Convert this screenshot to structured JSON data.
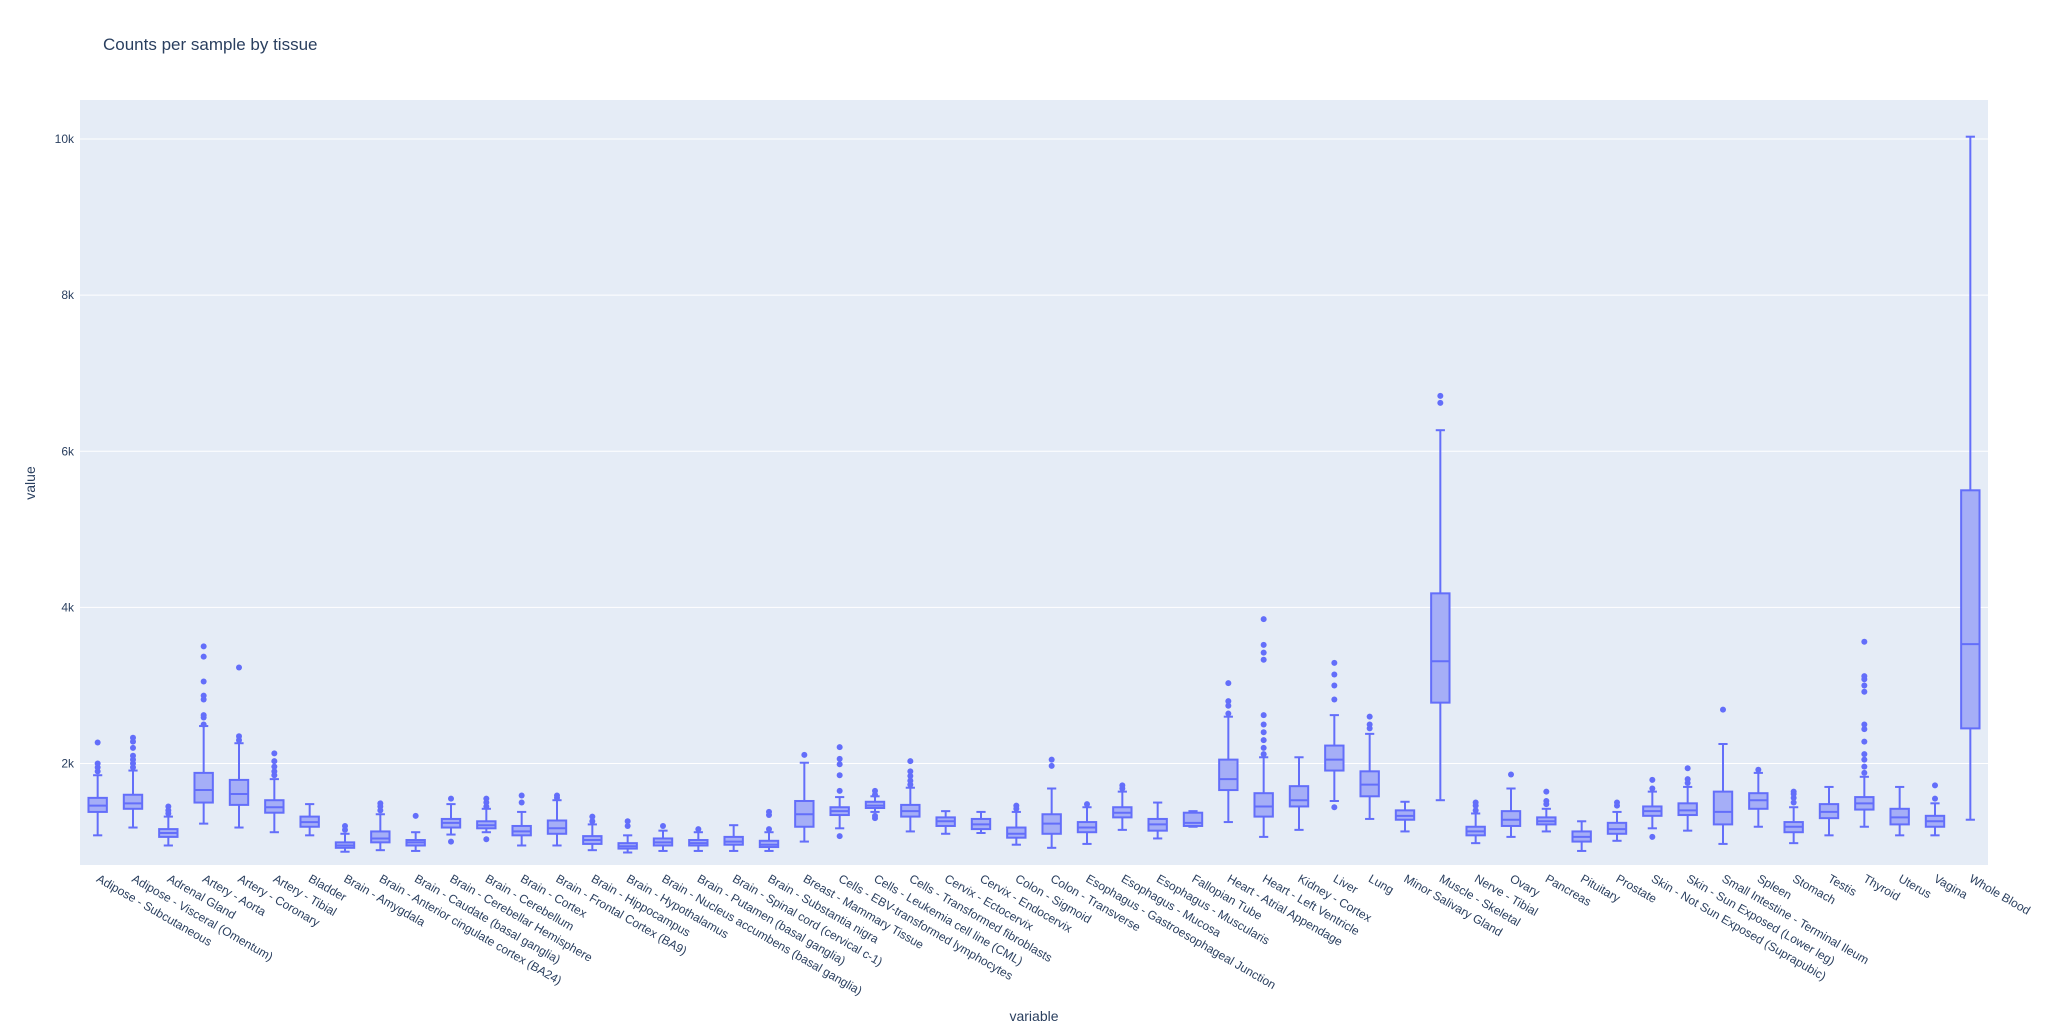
{
  "chart_data": {
    "type": "box",
    "title": "Counts per sample by tissue",
    "xlabel": "variable",
    "ylabel": "value",
    "ylim": [
      700,
      10500
    ],
    "yticks": [
      2000,
      4000,
      6000,
      8000,
      10000
    ],
    "ytick_labels": [
      "2k",
      "4k",
      "6k",
      "8k",
      "10k"
    ],
    "grid": true,
    "colors": {
      "plot_bg": "#e5ecf6",
      "box_line": "#636efa",
      "box_fill": "#a5aef7",
      "grid": "#ffffff",
      "text": "#2a3f5f"
    },
    "categories": [
      "Adipose - Subcutaneous",
      "Adipose - Visceral (Omentum)",
      "Adrenal Gland",
      "Artery - Aorta",
      "Artery - Coronary",
      "Artery - Tibial",
      "Bladder",
      "Brain - Amygdala",
      "Brain - Anterior cingulate cortex (BA24)",
      "Brain - Caudate (basal ganglia)",
      "Brain - Cerebellar Hemisphere",
      "Brain - Cerebellum",
      "Brain - Cortex",
      "Brain - Frontal Cortex (BA9)",
      "Brain - Hippocampus",
      "Brain - Hypothalamus",
      "Brain - Nucleus accumbens (basal ganglia)",
      "Brain - Putamen (basal ganglia)",
      "Brain - Spinal cord (cervical c-1)",
      "Brain - Substantia nigra",
      "Breast - Mammary Tissue",
      "Cells - EBV-transformed lymphocytes",
      "Cells - Leukemia cell line (CML)",
      "Cells - Transformed fibroblasts",
      "Cervix - Ectocervix",
      "Cervix - Endocervix",
      "Colon - Sigmoid",
      "Colon - Transverse",
      "Esophagus - Gastroesophageal Junction",
      "Esophagus - Mucosa",
      "Esophagus - Muscularis",
      "Fallopian Tube",
      "Heart - Atrial Appendage",
      "Heart - Left Ventricle",
      "Kidney - Cortex",
      "Liver",
      "Lung",
      "Minor Salivary Gland",
      "Muscle - Skeletal",
      "Nerve - Tibial",
      "Ovary",
      "Pancreas",
      "Pituitary",
      "Prostate",
      "Skin - Not Sun Exposed (Suprapubic)",
      "Skin - Sun Exposed (Lower leg)",
      "Small Intestine - Terminal Ileum",
      "Spleen",
      "Stomach",
      "Testis",
      "Thyroid",
      "Uterus",
      "Vagina",
      "Whole Blood"
    ],
    "boxes": [
      {
        "lower": 1080,
        "q1": 1380,
        "median": 1460,
        "q3": 1560,
        "upper": 1850,
        "outliers": [
          1900,
          1950,
          2000,
          2270
        ]
      },
      {
        "lower": 1180,
        "q1": 1420,
        "median": 1490,
        "q3": 1600,
        "upper": 1910,
        "outliers": [
          1950,
          2000,
          2050,
          2100,
          2200,
          2280,
          2330
        ]
      },
      {
        "lower": 950,
        "q1": 1060,
        "median": 1110,
        "q3": 1160,
        "upper": 1320,
        "outliers": [
          1360,
          1400,
          1450
        ]
      },
      {
        "lower": 1230,
        "q1": 1500,
        "median": 1660,
        "q3": 1880,
        "upper": 2480,
        "outliers": [
          2500,
          2590,
          2620,
          2820,
          2870,
          3050,
          3370,
          3500
        ]
      },
      {
        "lower": 1180,
        "q1": 1470,
        "median": 1610,
        "q3": 1790,
        "upper": 2260,
        "outliers": [
          2300,
          2350,
          3230
        ]
      },
      {
        "lower": 1120,
        "q1": 1370,
        "median": 1440,
        "q3": 1530,
        "upper": 1800,
        "outliers": [
          1850,
          1900,
          1960,
          2030,
          2130
        ]
      },
      {
        "lower": 1080,
        "q1": 1190,
        "median": 1250,
        "q3": 1320,
        "upper": 1480,
        "outliers": []
      },
      {
        "lower": 870,
        "q1": 920,
        "median": 950,
        "q3": 990,
        "upper": 1100,
        "outliers": [
          1150,
          1200
        ]
      },
      {
        "lower": 890,
        "q1": 990,
        "median": 1040,
        "q3": 1130,
        "upper": 1350,
        "outliers": [
          1400,
          1450,
          1490
        ]
      },
      {
        "lower": 880,
        "q1": 950,
        "median": 990,
        "q3": 1020,
        "upper": 1120,
        "outliers": [
          1330
        ]
      },
      {
        "lower": 1090,
        "q1": 1180,
        "median": 1240,
        "q3": 1290,
        "upper": 1480,
        "outliers": [
          1000,
          1550
        ]
      },
      {
        "lower": 1120,
        "q1": 1170,
        "median": 1210,
        "q3": 1260,
        "upper": 1420,
        "outliers": [
          1030,
          1450,
          1500,
          1550
        ]
      },
      {
        "lower": 950,
        "q1": 1080,
        "median": 1130,
        "q3": 1200,
        "upper": 1380,
        "outliers": [
          1500,
          1590
        ]
      },
      {
        "lower": 950,
        "q1": 1100,
        "median": 1170,
        "q3": 1270,
        "upper": 1530,
        "outliers": [
          1560,
          1590
        ]
      },
      {
        "lower": 890,
        "q1": 970,
        "median": 1020,
        "q3": 1070,
        "upper": 1220,
        "outliers": [
          1260,
          1320
        ]
      },
      {
        "lower": 860,
        "q1": 910,
        "median": 940,
        "q3": 980,
        "upper": 1080,
        "outliers": [
          1200,
          1260
        ]
      },
      {
        "lower": 880,
        "q1": 950,
        "median": 990,
        "q3": 1040,
        "upper": 1140,
        "outliers": [
          1200
        ]
      },
      {
        "lower": 880,
        "q1": 950,
        "median": 980,
        "q3": 1020,
        "upper": 1120,
        "outliers": [
          1160
        ]
      },
      {
        "lower": 880,
        "q1": 960,
        "median": 1000,
        "q3": 1060,
        "upper": 1210,
        "outliers": []
      },
      {
        "lower": 880,
        "q1": 930,
        "median": 960,
        "q3": 1010,
        "upper": 1120,
        "outliers": [
          1160,
          1340,
          1380
        ]
      },
      {
        "lower": 1000,
        "q1": 1190,
        "median": 1350,
        "q3": 1520,
        "upper": 2010,
        "outliers": [
          2110
        ]
      },
      {
        "lower": 1170,
        "q1": 1340,
        "median": 1390,
        "q3": 1440,
        "upper": 1570,
        "outliers": [
          1070,
          1650,
          1850,
          1990,
          2060,
          2210
        ]
      },
      {
        "lower": 1380,
        "q1": 1430,
        "median": 1460,
        "q3": 1510,
        "upper": 1580,
        "outliers": [
          1300,
          1330,
          1600,
          1650
        ]
      },
      {
        "lower": 1130,
        "q1": 1320,
        "median": 1390,
        "q3": 1470,
        "upper": 1690,
        "outliers": [
          1730,
          1780,
          1840,
          1900,
          2030
        ]
      },
      {
        "lower": 1100,
        "q1": 1200,
        "median": 1260,
        "q3": 1310,
        "upper": 1390,
        "outliers": []
      },
      {
        "lower": 1110,
        "q1": 1160,
        "median": 1220,
        "q3": 1290,
        "upper": 1380,
        "outliers": []
      },
      {
        "lower": 960,
        "q1": 1050,
        "median": 1100,
        "q3": 1180,
        "upper": 1380,
        "outliers": [
          1420,
          1460
        ]
      },
      {
        "lower": 920,
        "q1": 1100,
        "median": 1230,
        "q3": 1350,
        "upper": 1680,
        "outliers": [
          1970,
          2050
        ]
      },
      {
        "lower": 970,
        "q1": 1120,
        "median": 1180,
        "q3": 1250,
        "upper": 1440,
        "outliers": [
          1480
        ]
      },
      {
        "lower": 1150,
        "q1": 1310,
        "median": 1370,
        "q3": 1440,
        "upper": 1640,
        "outliers": [
          1680,
          1720
        ]
      },
      {
        "lower": 1040,
        "q1": 1140,
        "median": 1220,
        "q3": 1290,
        "upper": 1500,
        "outliers": []
      },
      {
        "lower": 1190,
        "q1": 1200,
        "median": 1240,
        "q3": 1370,
        "upper": 1390,
        "outliers": []
      },
      {
        "lower": 1250,
        "q1": 1660,
        "median": 1800,
        "q3": 2050,
        "upper": 2600,
        "outliers": [
          2640,
          2740,
          2800,
          3030
        ]
      },
      {
        "lower": 1060,
        "q1": 1320,
        "median": 1450,
        "q3": 1620,
        "upper": 2080,
        "outliers": [
          2120,
          2200,
          2300,
          2400,
          2500,
          2620,
          3330,
          3420,
          3520,
          3850
        ]
      },
      {
        "lower": 1150,
        "q1": 1450,
        "median": 1530,
        "q3": 1710,
        "upper": 2080,
        "outliers": []
      },
      {
        "lower": 1520,
        "q1": 1910,
        "median": 2050,
        "q3": 2230,
        "upper": 2620,
        "outliers": [
          1440,
          2820,
          3000,
          3140,
          3290
        ]
      },
      {
        "lower": 1290,
        "q1": 1580,
        "median": 1730,
        "q3": 1900,
        "upper": 2380,
        "outliers": [
          2450,
          2500,
          2600
        ]
      },
      {
        "lower": 1130,
        "q1": 1280,
        "median": 1330,
        "q3": 1400,
        "upper": 1510,
        "outliers": []
      },
      {
        "lower": 1530,
        "q1": 2780,
        "median": 3310,
        "q3": 4180,
        "upper": 6270,
        "outliers": [
          6620,
          6710
        ]
      },
      {
        "lower": 980,
        "q1": 1080,
        "median": 1130,
        "q3": 1190,
        "upper": 1360,
        "outliers": [
          1400,
          1460,
          1500
        ]
      },
      {
        "lower": 1060,
        "q1": 1200,
        "median": 1280,
        "q3": 1390,
        "upper": 1680,
        "outliers": [
          1860
        ]
      },
      {
        "lower": 1130,
        "q1": 1220,
        "median": 1260,
        "q3": 1310,
        "upper": 1420,
        "outliers": [
          1480,
          1520,
          1640
        ]
      },
      {
        "lower": 880,
        "q1": 1000,
        "median": 1060,
        "q3": 1130,
        "upper": 1260,
        "outliers": []
      },
      {
        "lower": 1010,
        "q1": 1100,
        "median": 1160,
        "q3": 1240,
        "upper": 1380,
        "outliers": [
          1460,
          1500
        ]
      },
      {
        "lower": 1170,
        "q1": 1330,
        "median": 1390,
        "q3": 1450,
        "upper": 1640,
        "outliers": [
          1060,
          1680,
          1790
        ]
      },
      {
        "lower": 1140,
        "q1": 1340,
        "median": 1400,
        "q3": 1490,
        "upper": 1700,
        "outliers": [
          1750,
          1800,
          1940
        ]
      },
      {
        "lower": 970,
        "q1": 1220,
        "median": 1380,
        "q3": 1640,
        "upper": 2250,
        "outliers": [
          2690
        ]
      },
      {
        "lower": 1190,
        "q1": 1420,
        "median": 1530,
        "q3": 1620,
        "upper": 1880,
        "outliers": [
          1920
        ]
      },
      {
        "lower": 980,
        "q1": 1120,
        "median": 1190,
        "q3": 1250,
        "upper": 1440,
        "outliers": [
          1500,
          1560,
          1610,
          1640
        ]
      },
      {
        "lower": 1080,
        "q1": 1300,
        "median": 1380,
        "q3": 1480,
        "upper": 1700,
        "outliers": []
      },
      {
        "lower": 1190,
        "q1": 1410,
        "median": 1490,
        "q3": 1570,
        "upper": 1830,
        "outliers": [
          1880,
          1960,
          2050,
          2120,
          2280,
          2440,
          2500,
          2920,
          3000,
          3080,
          3120,
          3560
        ]
      },
      {
        "lower": 1080,
        "q1": 1220,
        "median": 1310,
        "q3": 1420,
        "upper": 1700,
        "outliers": []
      },
      {
        "lower": 1080,
        "q1": 1190,
        "median": 1260,
        "q3": 1330,
        "upper": 1490,
        "outliers": [
          1550,
          1720
        ]
      },
      {
        "lower": 1280,
        "q1": 2450,
        "median": 3530,
        "q3": 5500,
        "upper": 10030,
        "outliers": []
      }
    ]
  }
}
